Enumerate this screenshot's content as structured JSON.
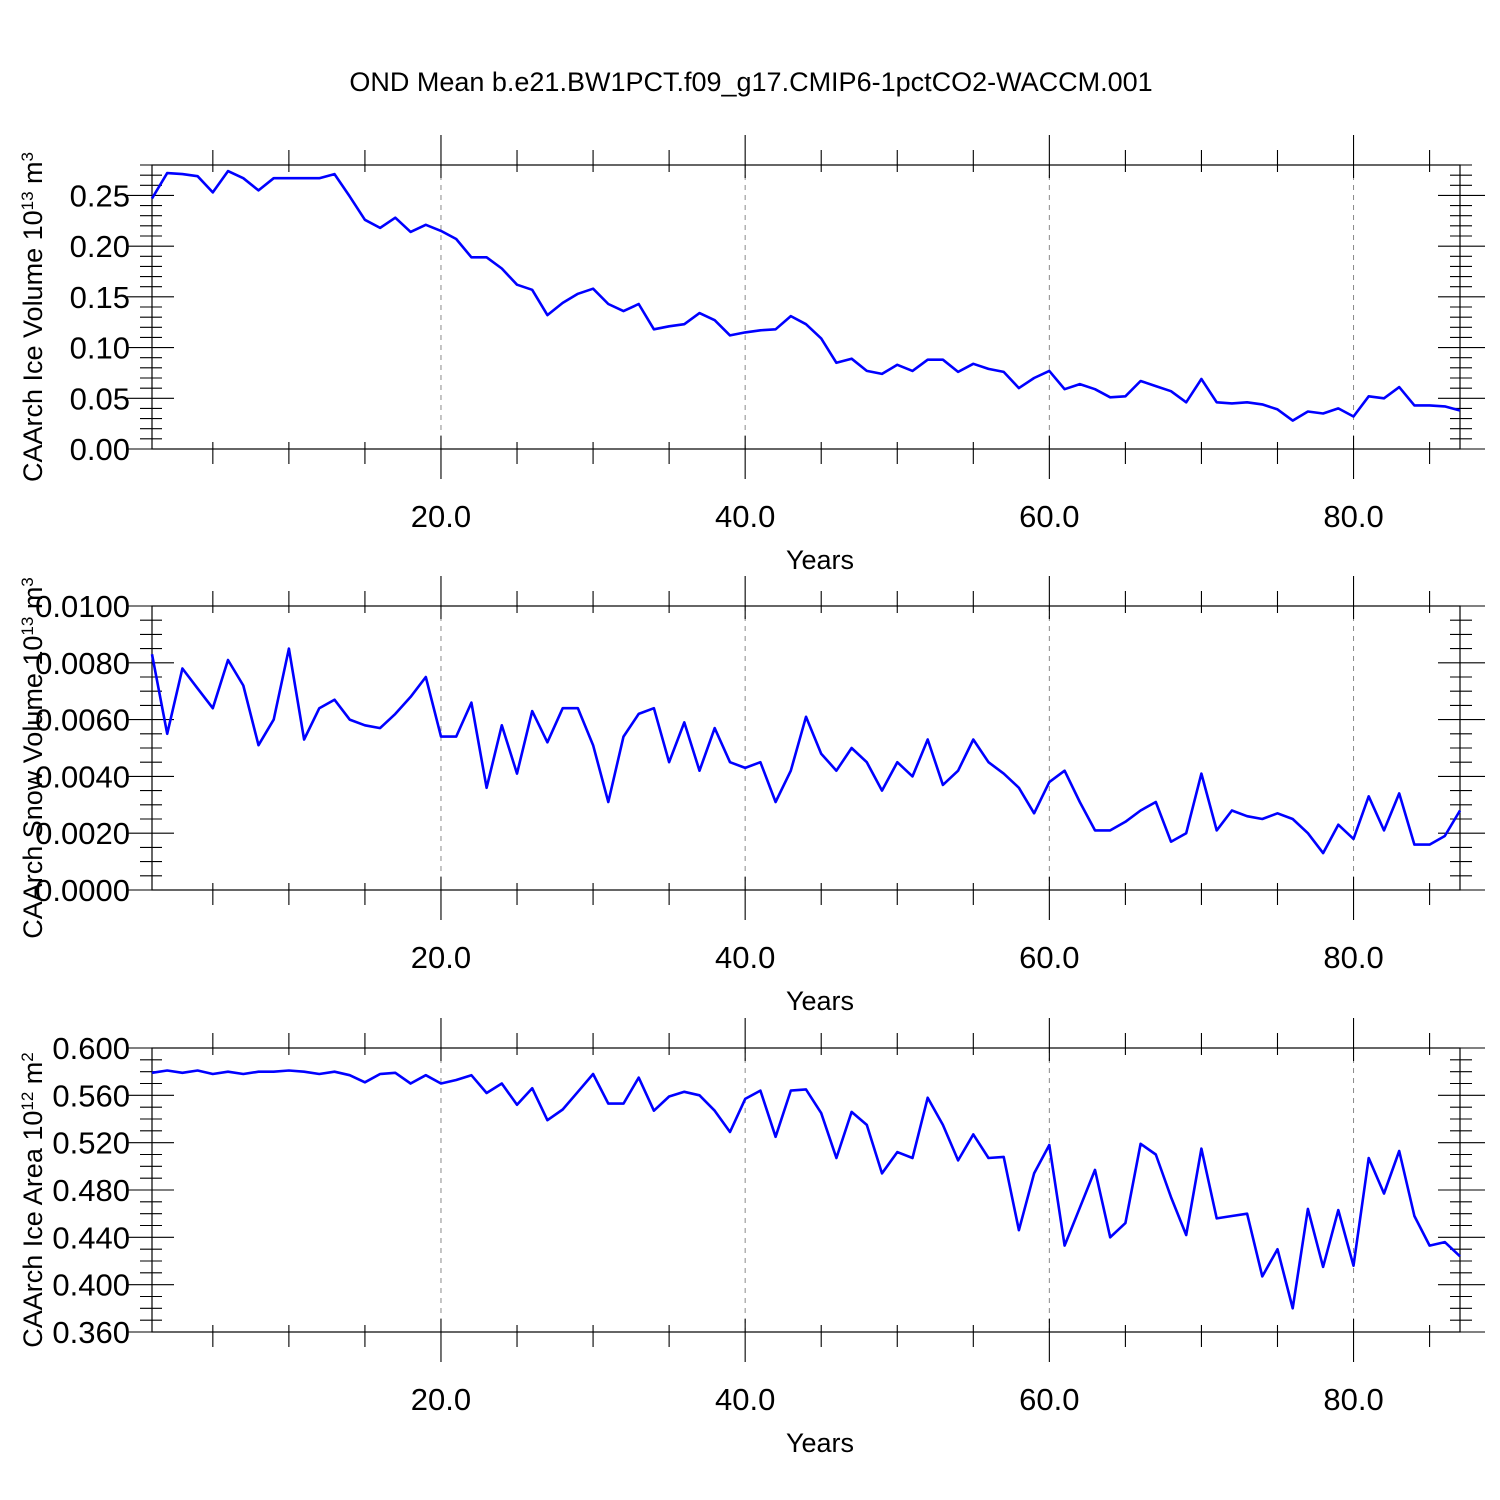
{
  "page_title": "OND Mean b.e21.BW1PCT.f09_g17.CMIP6-1pctCO2-WACCM.001",
  "colors": {
    "line": "#0000ff",
    "grid": "#8a8a8a",
    "axis": "#000000"
  },
  "chart_data": [
    {
      "type": "line",
      "name": "ice-volume",
      "ylabel": "CAArch Ice Volume 10",
      "ylabel_exp": "13",
      "ylabel_unit": " m",
      "ylabel_unit_exp": "3",
      "xlabel": "Years",
      "xlim": [
        1,
        87
      ],
      "ylim": [
        0,
        0.28
      ],
      "x_major_ticks": [
        20,
        40,
        60,
        80
      ],
      "x_tick_labels": [
        "20.0",
        "40.0",
        "60.0",
        "80.0"
      ],
      "x_minor_step": 5,
      "y_major_ticks": [
        0,
        0.05,
        0.1,
        0.15,
        0.2,
        0.25
      ],
      "y_tick_labels": [
        "0.00",
        "0.05",
        "0.10",
        "0.15",
        "0.20",
        "0.25"
      ],
      "y_minor_step": 0.01,
      "grid": "vertical dashed at major x ticks",
      "x": [
        1,
        2,
        3,
        4,
        5,
        6,
        7,
        8,
        9,
        10,
        11,
        12,
        13,
        14,
        15,
        16,
        17,
        18,
        19,
        20,
        21,
        22,
        23,
        24,
        25,
        26,
        27,
        28,
        29,
        30,
        31,
        32,
        33,
        34,
        35,
        36,
        37,
        38,
        39,
        40,
        41,
        42,
        43,
        44,
        45,
        46,
        47,
        48,
        49,
        50,
        51,
        52,
        53,
        54,
        55,
        56,
        57,
        58,
        59,
        60,
        61,
        62,
        63,
        64,
        65,
        66,
        67,
        68,
        69,
        70,
        71,
        72,
        73,
        74,
        75,
        76,
        77,
        78,
        79,
        80,
        81,
        82,
        83,
        84,
        85,
        86,
        87
      ],
      "values": [
        0.247,
        0.272,
        0.271,
        0.269,
        0.253,
        0.274,
        0.267,
        0.255,
        0.267,
        0.267,
        0.267,
        0.267,
        0.271,
        0.249,
        0.226,
        0.218,
        0.228,
        0.214,
        0.221,
        0.215,
        0.207,
        0.189,
        0.189,
        0.178,
        0.162,
        0.157,
        0.132,
        0.144,
        0.153,
        0.158,
        0.143,
        0.136,
        0.143,
        0.118,
        0.121,
        0.123,
        0.134,
        0.127,
        0.112,
        0.115,
        0.117,
        0.118,
        0.131,
        0.123,
        0.109,
        0.085,
        0.089,
        0.077,
        0.074,
        0.083,
        0.077,
        0.088,
        0.088,
        0.076,
        0.084,
        0.079,
        0.076,
        0.06,
        0.07,
        0.077,
        0.059,
        0.064,
        0.059,
        0.051,
        0.052,
        0.067,
        0.062,
        0.057,
        0.046,
        0.069,
        0.046,
        0.045,
        0.046,
        0.044,
        0.039,
        0.028,
        0.037,
        0.035,
        0.04,
        0.032,
        0.052,
        0.05,
        0.061,
        0.043,
        0.043,
        0.042,
        0.038
      ]
    },
    {
      "type": "line",
      "name": "snow-volume",
      "ylabel": "CAArch Snow Volume 10",
      "ylabel_exp": "13",
      "ylabel_unit": " m",
      "ylabel_unit_exp": "3",
      "xlabel": "Years",
      "xlim": [
        1,
        87
      ],
      "ylim": [
        0,
        0.01
      ],
      "x_major_ticks": [
        20,
        40,
        60,
        80
      ],
      "x_tick_labels": [
        "20.0",
        "40.0",
        "60.0",
        "80.0"
      ],
      "x_minor_step": 5,
      "y_major_ticks": [
        0,
        0.002,
        0.004,
        0.006,
        0.008,
        0.01
      ],
      "y_tick_labels": [
        "0.0000",
        "0.0020",
        "0.0040",
        "0.0060",
        "0.0080",
        "0.0100"
      ],
      "y_minor_step": 0.0005,
      "grid": "vertical dashed at major x ticks",
      "x": [
        1,
        2,
        3,
        4,
        5,
        6,
        7,
        8,
        9,
        10,
        11,
        12,
        13,
        14,
        15,
        16,
        17,
        18,
        19,
        20,
        21,
        22,
        23,
        24,
        25,
        26,
        27,
        28,
        29,
        30,
        31,
        32,
        33,
        34,
        35,
        36,
        37,
        38,
        39,
        40,
        41,
        42,
        43,
        44,
        45,
        46,
        47,
        48,
        49,
        50,
        51,
        52,
        53,
        54,
        55,
        56,
        57,
        58,
        59,
        60,
        61,
        62,
        63,
        64,
        65,
        66,
        67,
        68,
        69,
        70,
        71,
        72,
        73,
        74,
        75,
        76,
        77,
        78,
        79,
        80,
        81,
        82,
        83,
        84,
        85,
        86,
        87
      ],
      "values": [
        0.0083,
        0.0055,
        0.0078,
        0.0071,
        0.0064,
        0.0081,
        0.0072,
        0.0051,
        0.006,
        0.0085,
        0.0053,
        0.0064,
        0.0067,
        0.006,
        0.0058,
        0.0057,
        0.0062,
        0.0068,
        0.0075,
        0.0054,
        0.0054,
        0.0066,
        0.0036,
        0.0058,
        0.0041,
        0.0063,
        0.0052,
        0.0064,
        0.0064,
        0.0051,
        0.0031,
        0.0054,
        0.0062,
        0.0064,
        0.0045,
        0.0059,
        0.0042,
        0.0057,
        0.0045,
        0.0043,
        0.0045,
        0.0031,
        0.0042,
        0.0061,
        0.0048,
        0.0042,
        0.005,
        0.0045,
        0.0035,
        0.0045,
        0.004,
        0.0053,
        0.0037,
        0.0042,
        0.0053,
        0.0045,
        0.0041,
        0.0036,
        0.0027,
        0.0038,
        0.0042,
        0.0031,
        0.0021,
        0.0021,
        0.0024,
        0.0028,
        0.0031,
        0.0017,
        0.002,
        0.0041,
        0.0021,
        0.0028,
        0.0026,
        0.0025,
        0.0027,
        0.0025,
        0.002,
        0.0013,
        0.0023,
        0.0018,
        0.0033,
        0.0021,
        0.0034,
        0.0016,
        0.0016,
        0.0019,
        0.0028
      ]
    },
    {
      "type": "line",
      "name": "ice-area",
      "ylabel": "CAArch Ice Area 10",
      "ylabel_exp": "12",
      "ylabel_unit": " m",
      "ylabel_unit_exp": "2",
      "xlabel": "Years",
      "xlim": [
        1,
        87
      ],
      "ylim": [
        0.36,
        0.6
      ],
      "x_major_ticks": [
        20,
        40,
        60,
        80
      ],
      "x_tick_labels": [
        "20.0",
        "40.0",
        "60.0",
        "80.0"
      ],
      "x_minor_step": 5,
      "y_major_ticks": [
        0.36,
        0.4,
        0.44,
        0.48,
        0.52,
        0.56,
        0.6
      ],
      "y_tick_labels": [
        "0.360",
        "0.400",
        "0.440",
        "0.480",
        "0.520",
        "0.560",
        "0.600"
      ],
      "y_minor_step": 0.01,
      "grid": "vertical dashed at major x ticks",
      "x": [
        1,
        2,
        3,
        4,
        5,
        6,
        7,
        8,
        9,
        10,
        11,
        12,
        13,
        14,
        15,
        16,
        17,
        18,
        19,
        20,
        21,
        22,
        23,
        24,
        25,
        26,
        27,
        28,
        29,
        30,
        31,
        32,
        33,
        34,
        35,
        36,
        37,
        38,
        39,
        40,
        41,
        42,
        43,
        44,
        45,
        46,
        47,
        48,
        49,
        50,
        51,
        52,
        53,
        54,
        55,
        56,
        57,
        58,
        59,
        60,
        61,
        62,
        63,
        64,
        65,
        66,
        67,
        68,
        69,
        70,
        71,
        72,
        73,
        74,
        75,
        76,
        77,
        78,
        79,
        80,
        81,
        82,
        83,
        84,
        85,
        86,
        87
      ],
      "values": [
        0.579,
        0.581,
        0.579,
        0.581,
        0.578,
        0.58,
        0.578,
        0.58,
        0.58,
        0.581,
        0.58,
        0.578,
        0.58,
        0.577,
        0.571,
        0.578,
        0.579,
        0.57,
        0.577,
        0.57,
        0.573,
        0.577,
        0.562,
        0.57,
        0.552,
        0.566,
        0.539,
        0.548,
        0.563,
        0.578,
        0.553,
        0.553,
        0.575,
        0.547,
        0.559,
        0.563,
        0.56,
        0.547,
        0.529,
        0.557,
        0.564,
        0.525,
        0.564,
        0.565,
        0.545,
        0.507,
        0.546,
        0.535,
        0.494,
        0.512,
        0.507,
        0.558,
        0.535,
        0.505,
        0.527,
        0.507,
        0.508,
        0.446,
        0.494,
        0.518,
        0.433,
        0.465,
        0.497,
        0.44,
        0.452,
        0.519,
        0.51,
        0.474,
        0.442,
        0.515,
        0.456,
        0.458,
        0.46,
        0.407,
        0.43,
        0.38,
        0.464,
        0.415,
        0.463,
        0.416,
        0.507,
        0.477,
        0.513,
        0.458,
        0.433,
        0.436,
        0.424
      ]
    }
  ]
}
